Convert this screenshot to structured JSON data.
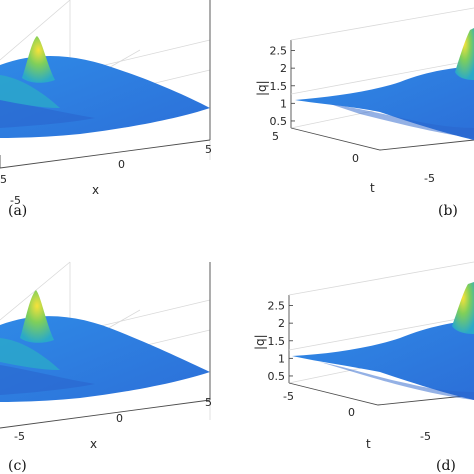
{
  "chart_data": [
    {
      "type": "surface",
      "panel_label": "(a)",
      "xlabel": "x",
      "x_ticks": [
        "0",
        "5"
      ],
      "y_ticks": [
        "5",
        "-5"
      ],
      "colors": {
        "low": "#2e7fe0",
        "mid": "#29b7b0",
        "high": "#f2d53c"
      }
    },
    {
      "type": "surface",
      "panel_label": "(b)",
      "xlabel": "t",
      "zlabel": "|q|",
      "x_ticks": [
        "5",
        "0",
        "-5"
      ],
      "z_ticks": [
        0.5,
        1,
        1.5,
        2,
        2.5
      ],
      "zlim": [
        0.3,
        2.8
      ],
      "colors": {
        "low": "#2e7fe0",
        "mid": "#29b7b0",
        "high": "#f2d53c"
      }
    },
    {
      "type": "surface",
      "panel_label": "(c)",
      "xlabel": "x",
      "x_ticks": [
        "0",
        "5"
      ],
      "y_ticks": [
        "-5"
      ],
      "colors": {
        "low": "#2e7fe0",
        "mid": "#29b7b0",
        "high": "#f2d53c"
      }
    },
    {
      "type": "surface",
      "panel_label": "(d)",
      "xlabel": "t",
      "zlabel": "|q|",
      "x_ticks": [
        "-5",
        "0",
        "-5"
      ],
      "z_ticks": [
        0.5,
        1,
        1.5,
        2,
        2.5
      ],
      "zlim": [
        0.3,
        2.8
      ],
      "colors": {
        "low": "#2e7fe0",
        "mid": "#29b7b0",
        "high": "#f2d53c"
      }
    }
  ]
}
